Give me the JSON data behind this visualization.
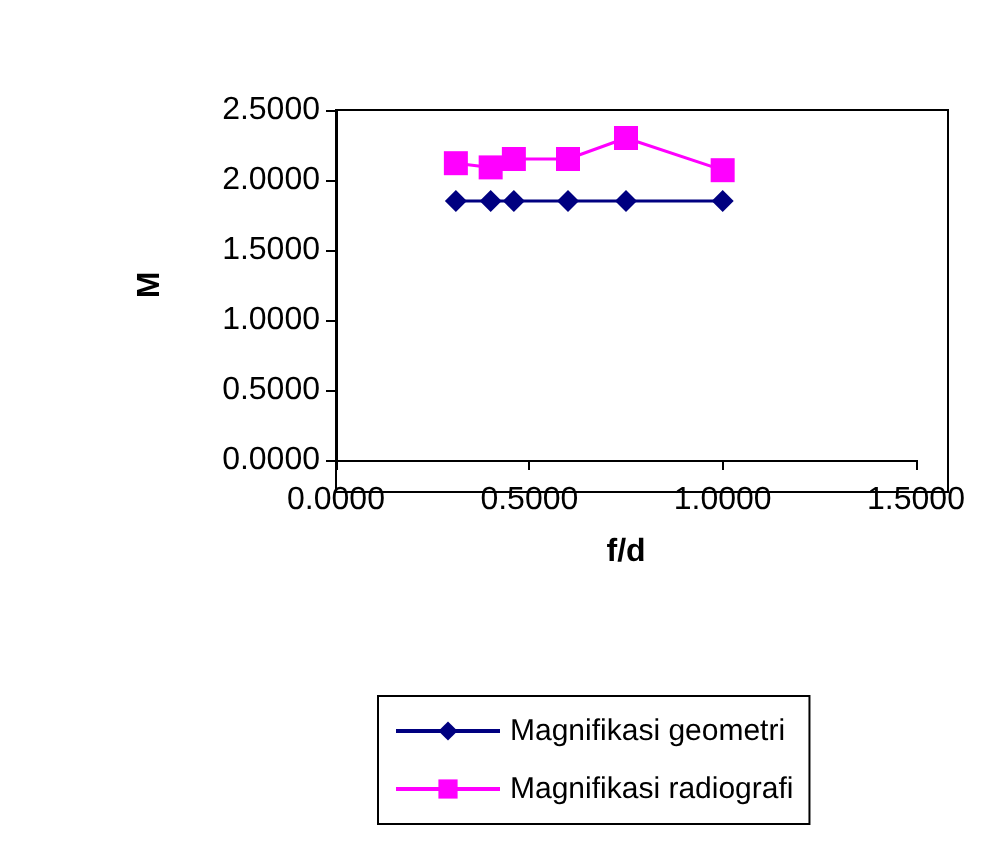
{
  "chart_data": {
    "type": "line",
    "xlabel": "f/d",
    "ylabel": "M",
    "xlim": [
      0,
      1.5
    ],
    "xticks": [
      {
        "value": 0,
        "label": "0.0000"
      },
      {
        "value": 0.5,
        "label": "0.5000"
      },
      {
        "value": 1,
        "label": "1.0000"
      },
      {
        "value": 1.5,
        "label": "1.5000"
      }
    ],
    "ylim": [
      0,
      2.5
    ],
    "yticks": [
      {
        "value": 0,
        "label": "0.0000"
      },
      {
        "value": 0.5,
        "label": "0.5000"
      },
      {
        "value": 1,
        "label": "1.0000"
      },
      {
        "value": 1.5,
        "label": "1.5000"
      },
      {
        "value": 2,
        "label": "2.0000"
      },
      {
        "value": 2.5,
        "label": "2.5000"
      }
    ],
    "x": [
      0.31,
      0.4,
      0.46,
      0.6,
      0.75,
      1.0
    ],
    "series": [
      {
        "name": "Magnifikasi geometri",
        "color": "#000080",
        "marker": "diamond",
        "values": [
          1.85,
          1.85,
          1.85,
          1.85,
          1.85,
          1.85
        ]
      },
      {
        "name": "Magnifikasi radiografi",
        "color": "#ff00ff",
        "marker": "square",
        "values": [
          2.12,
          2.09,
          2.15,
          2.15,
          2.3,
          2.07
        ]
      }
    ],
    "grid": false,
    "legend": "bottom"
  }
}
